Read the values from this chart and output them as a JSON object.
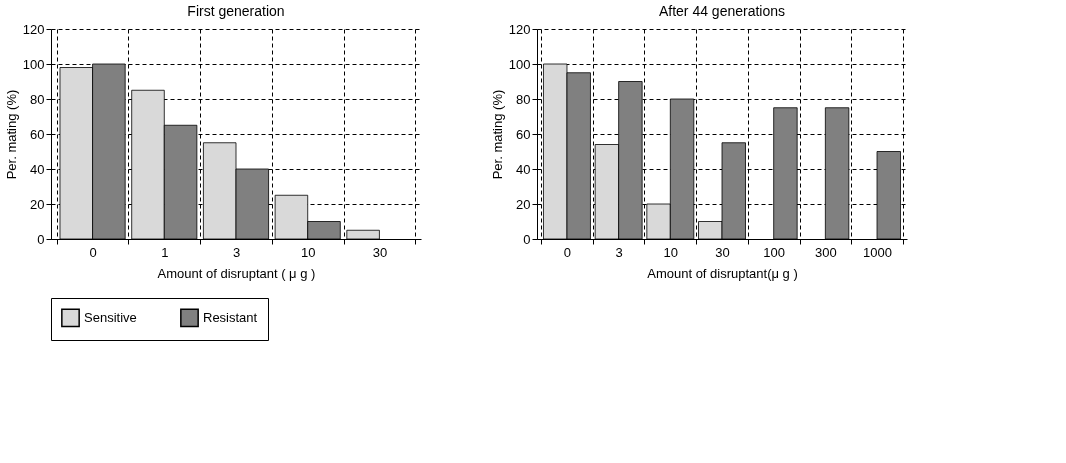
{
  "chart_data": [
    {
      "type": "bar",
      "title": "First generation",
      "xlabel": "Amount of disruptant ( μ g )",
      "ylabel": "Per. mating (%)",
      "categories": [
        "0",
        "1",
        "3",
        "10",
        "30"
      ],
      "series": [
        {
          "name": "Sensitive",
          "color": "#d9d9d9",
          "values": [
            98,
            85,
            55,
            25,
            5
          ]
        },
        {
          "name": "Resistant",
          "color": "#808080",
          "values": [
            100,
            65,
            40,
            10,
            null
          ]
        }
      ],
      "ylim": [
        0,
        120
      ],
      "yticks": [
        0,
        20,
        40,
        60,
        80,
        100,
        120
      ],
      "grid": true,
      "legend": "bottom"
    },
    {
      "type": "bar",
      "title": "After 44 generations",
      "xlabel": "Amount of disruptant(μ g )",
      "ylabel": "Per. mating (%)",
      "categories": [
        "0",
        "3",
        "10",
        "30",
        "100",
        "300",
        "1000"
      ],
      "series": [
        {
          "name": "Sensitive",
          "color": "#d9d9d9",
          "values": [
            100,
            54,
            20,
            10,
            null,
            null,
            null
          ]
        },
        {
          "name": "Resistant",
          "color": "#808080",
          "values": [
            95,
            90,
            80,
            55,
            75,
            75,
            50
          ]
        }
      ],
      "ylim": [
        0,
        120
      ],
      "yticks": [
        0,
        20,
        40,
        60,
        80,
        100,
        120
      ],
      "grid": true
    }
  ]
}
